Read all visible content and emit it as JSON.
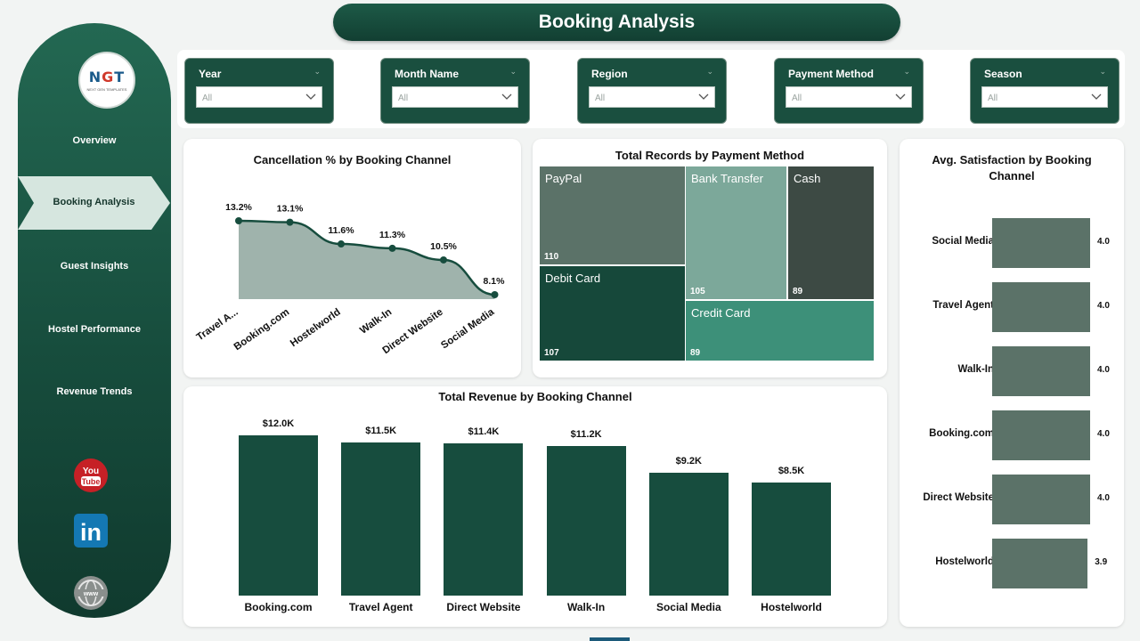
{
  "title": "Booking Analysis",
  "logo": {
    "text": "NGT",
    "tagline": "NEXT GEN TEMPLATES"
  },
  "nav": {
    "items": [
      "Overview",
      "Booking Analysis",
      "Guest Insights",
      "Hostel Performance",
      "Revenue Trends"
    ],
    "active": "Booking Analysis"
  },
  "social": {
    "youtube": "You Tube",
    "linkedin": "in"
  },
  "filters": [
    {
      "label": "Year",
      "value": "All"
    },
    {
      "label": "Month Name",
      "value": "All"
    },
    {
      "label": "Region",
      "value": "All"
    },
    {
      "label": "Payment Method",
      "value": "All"
    },
    {
      "label": "Season",
      "value": "All"
    }
  ],
  "colors": {
    "primary": "#174d3e",
    "sidebar": "#1d5a47",
    "area_fill": "#9fb3ac",
    "sat_bar": "#5b7268"
  },
  "chart_data": [
    {
      "type": "area",
      "title": "Cancellation % by Booking Channel",
      "categories": [
        "Travel A...",
        "Booking.com",
        "Hostelworld",
        "Walk-In",
        "Direct Website",
        "Social Media"
      ],
      "values": [
        13.2,
        13.1,
        11.6,
        11.3,
        10.5,
        8.1
      ],
      "labels": [
        "13.2%",
        "13.1%",
        "11.6%",
        "11.3%",
        "10.5%",
        "8.1%"
      ],
      "unit": "%"
    },
    {
      "type": "treemap",
      "title": "Total Records by Payment Method",
      "categories": [
        "PayPal",
        "Debit Card",
        "Bank Transfer",
        "Credit Card",
        "Cash"
      ],
      "values": [
        110,
        107,
        105,
        89,
        89
      ]
    },
    {
      "type": "bar",
      "orientation": "horizontal",
      "title": "Avg. Satisfaction by Booking Channel",
      "categories": [
        "Social Media",
        "Travel Agent",
        "Walk-In",
        "Booking.com",
        "Direct Website",
        "Hostelworld"
      ],
      "values": [
        4.0,
        4.0,
        4.0,
        4.0,
        4.0,
        3.9
      ],
      "labels": [
        "4.0",
        "4.0",
        "4.0",
        "4.0",
        "4.0",
        "3.9"
      ]
    },
    {
      "type": "bar",
      "title": "Total Revenue by Booking Channel",
      "categories": [
        "Booking.com",
        "Travel Agent",
        "Direct Website",
        "Walk-In",
        "Social Media",
        "Hostelworld"
      ],
      "values": [
        12.0,
        11.5,
        11.4,
        11.2,
        9.2,
        8.5
      ],
      "labels": [
        "$12.0K",
        "$11.5K",
        "$11.4K",
        "$11.2K",
        "$9.2K",
        "$8.5K"
      ],
      "unit": "$K"
    }
  ]
}
